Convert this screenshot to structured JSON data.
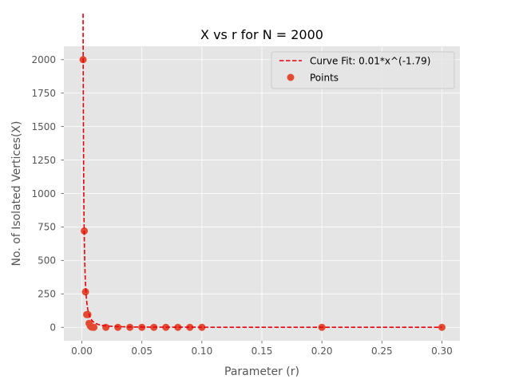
{
  "chart_data": {
    "type": "scatter",
    "title": "X vs r for N = 2000",
    "xlabel": "Parameter (r)",
    "ylabel": "No. of Isolated Vertices(X)",
    "xlim": [
      -0.015,
      0.315
    ],
    "ylim": [
      -100,
      2100
    ],
    "xticks": [
      0.0,
      0.05,
      0.1,
      0.15,
      0.2,
      0.25,
      0.3
    ],
    "xtick_labels": [
      "0.00",
      "0.05",
      "0.10",
      "0.15",
      "0.20",
      "0.25",
      "0.30"
    ],
    "yticks": [
      0,
      250,
      500,
      750,
      1000,
      1250,
      1500,
      1750,
      2000
    ],
    "ytick_labels": [
      "0",
      "250",
      "500",
      "750",
      "1000",
      "1250",
      "1500",
      "1750",
      "2000"
    ],
    "grid": true,
    "legend_position": "top-right",
    "series": [
      {
        "name": "Curve Fit: 0.01*x^(-1.79)",
        "kind": "line",
        "style": "dashed",
        "color": "#e8000b",
        "function": {
          "a": 0.01,
          "b": -1.79
        },
        "x_domain": [
          0.001,
          0.3
        ]
      },
      {
        "name": "Points",
        "kind": "scatter",
        "color": "#e24a33",
        "points": [
          {
            "x": 0.001,
            "y": 2000
          },
          {
            "x": 0.002,
            "y": 720
          },
          {
            "x": 0.003,
            "y": 265
          },
          {
            "x": 0.004,
            "y": 95
          },
          {
            "x": 0.005,
            "y": 95
          },
          {
            "x": 0.006,
            "y": 30
          },
          {
            "x": 0.007,
            "y": 10
          },
          {
            "x": 0.008,
            "y": 2
          },
          {
            "x": 0.009,
            "y": 1
          },
          {
            "x": 0.01,
            "y": 0
          },
          {
            "x": 0.02,
            "y": 0
          },
          {
            "x": 0.03,
            "y": 0
          },
          {
            "x": 0.04,
            "y": 0
          },
          {
            "x": 0.05,
            "y": 0
          },
          {
            "x": 0.06,
            "y": 0
          },
          {
            "x": 0.07,
            "y": 0
          },
          {
            "x": 0.08,
            "y": 0
          },
          {
            "x": 0.09,
            "y": 0
          },
          {
            "x": 0.1,
            "y": 0
          },
          {
            "x": 0.2,
            "y": 0
          },
          {
            "x": 0.3,
            "y": 0
          }
        ]
      }
    ],
    "colors": {
      "plot_background": "#e5e5e5",
      "grid": "#ffffff",
      "tick": "#555555"
    }
  }
}
